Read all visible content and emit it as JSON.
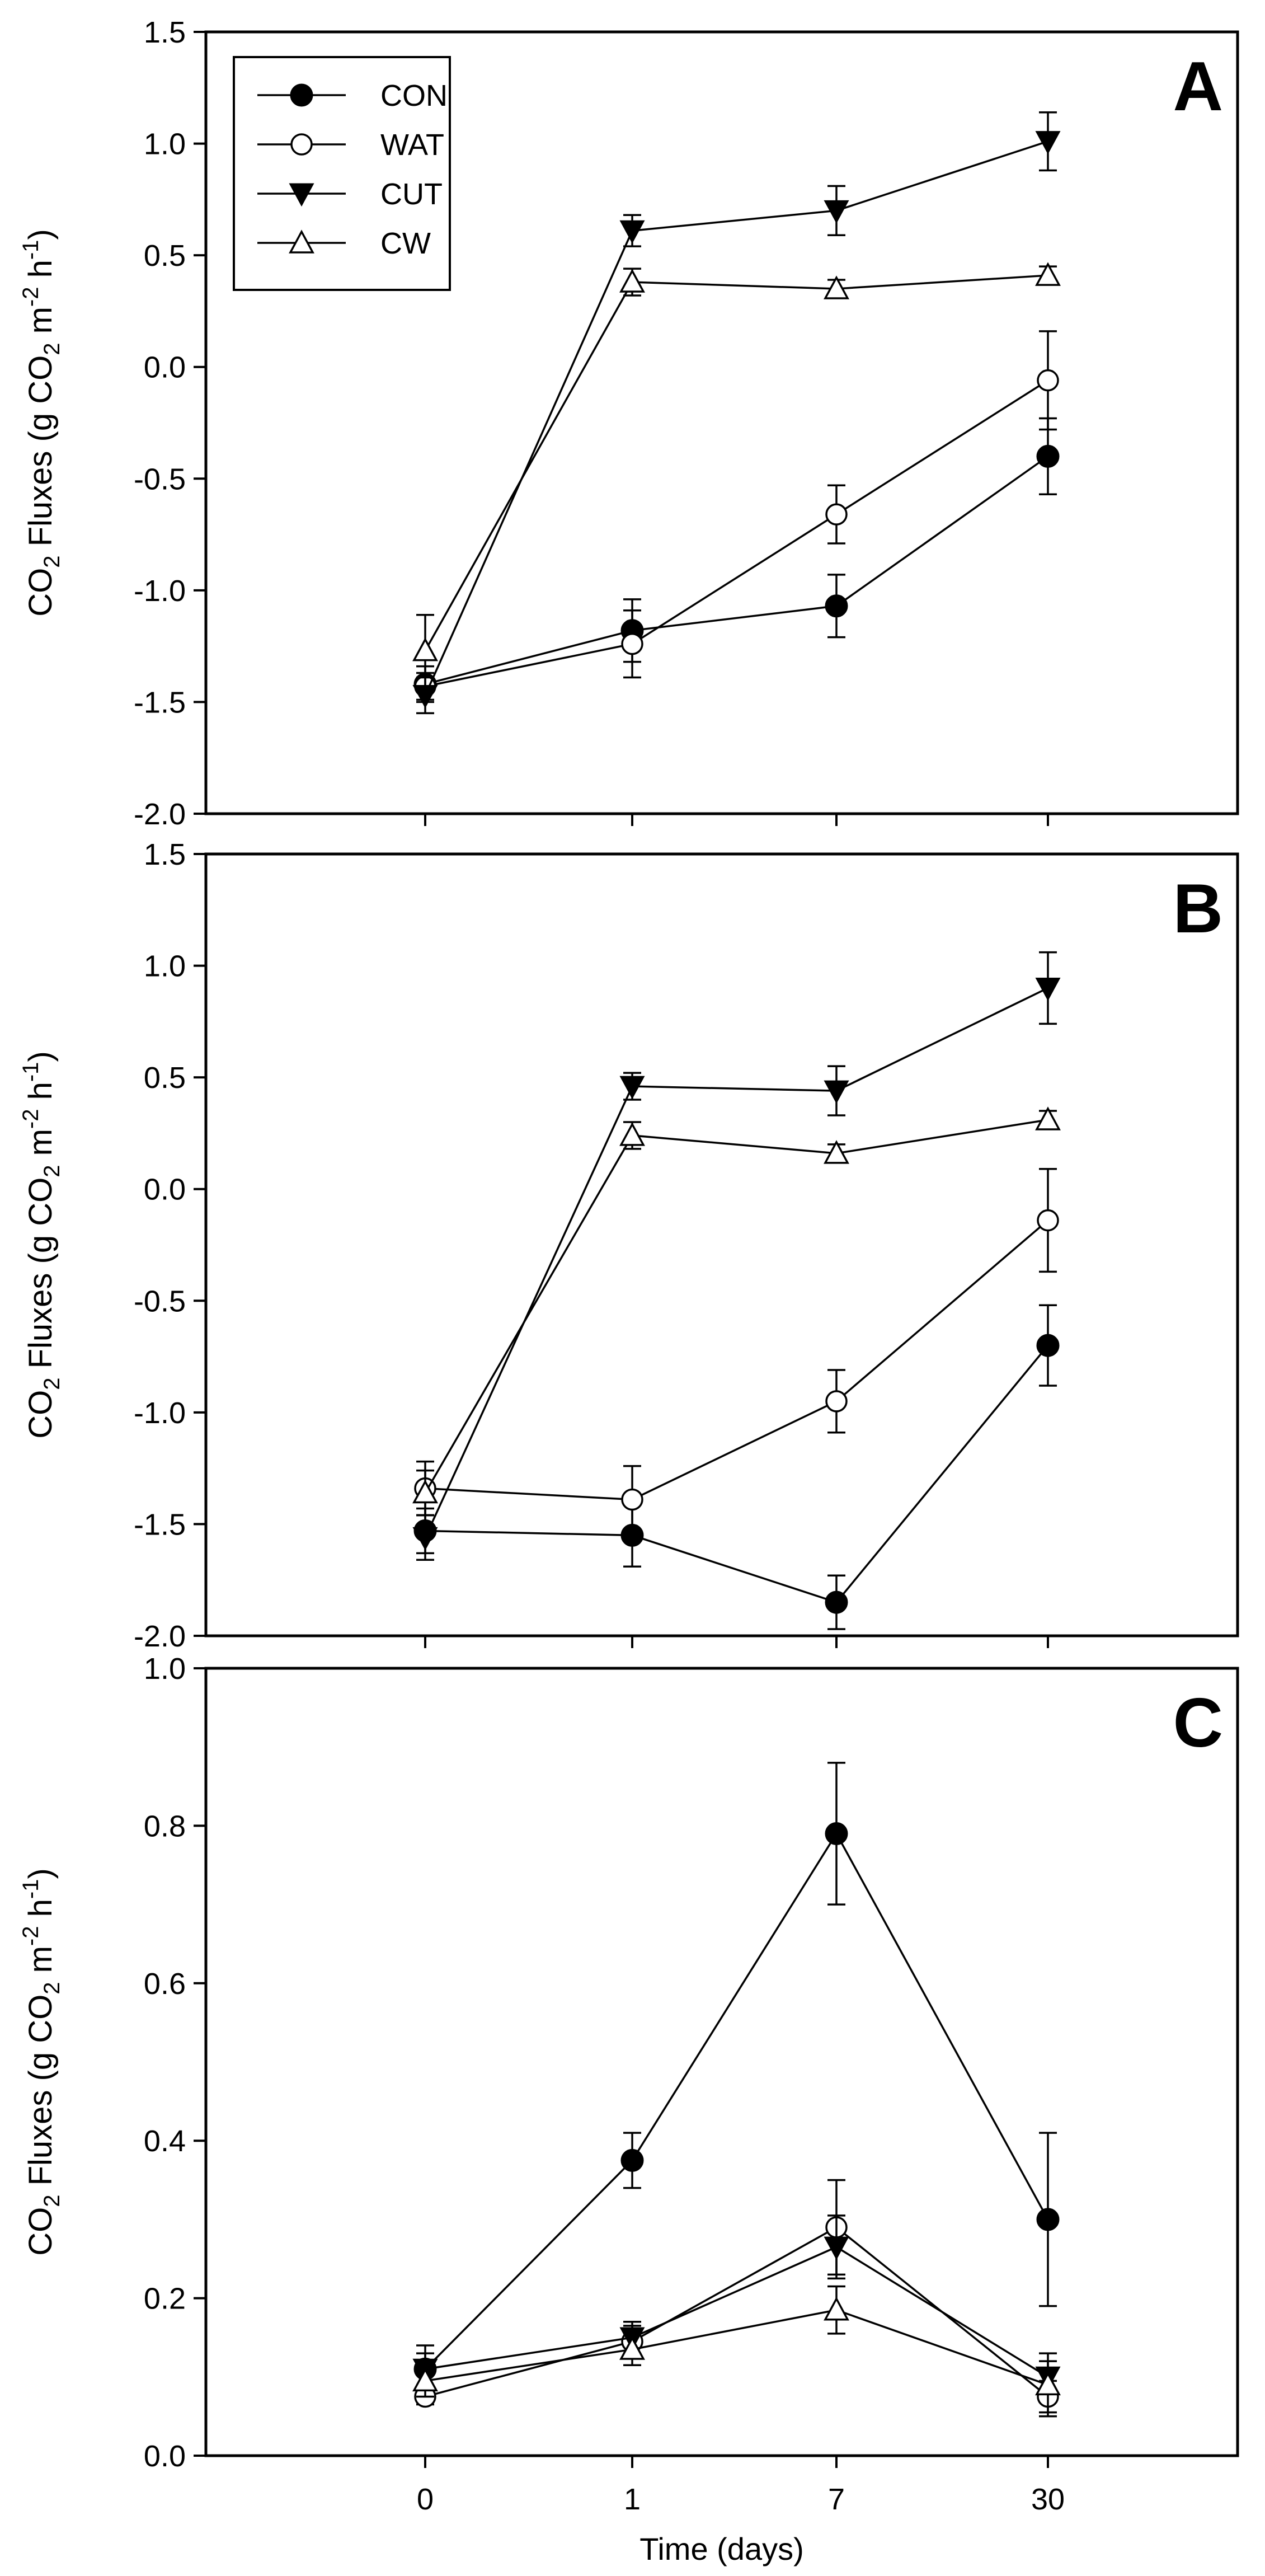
{
  "chart_data": [
    {
      "type": "line",
      "panel_label": "A",
      "ylabel": {
        "prefix": "CO",
        "sub": "2",
        "main": " Fluxes (g CO",
        "sub2": "2",
        "mid": " m",
        "sup1": "-2",
        "mid2": " h",
        "sup2": "-1",
        "end": ")"
      },
      "ylim": [
        -2.0,
        1.5
      ],
      "yticks": [
        "-2.0",
        "-1.5",
        "-1.0",
        "-0.5",
        "0.0",
        "0.5",
        "1.0",
        "1.5"
      ],
      "ytick_values": [
        -2.0,
        -1.5,
        -1.0,
        -0.5,
        0.0,
        0.5,
        1.0,
        1.5
      ],
      "categories": [
        "0",
        "1",
        "7",
        "30"
      ],
      "series": [
        {
          "name": "CON",
          "marker": "circle-filled",
          "values": [
            -1.42,
            -1.18,
            -1.07,
            -0.4
          ],
          "errors": [
            0.08,
            0.14,
            0.14,
            0.17
          ]
        },
        {
          "name": "WAT",
          "marker": "circle-open",
          "values": [
            -1.43,
            -1.24,
            -0.66,
            -0.06
          ],
          "errors": [
            0.06,
            0.15,
            0.13,
            0.22
          ]
        },
        {
          "name": "CUT",
          "marker": "triangle-down-filled",
          "values": [
            -1.47,
            0.61,
            0.7,
            1.01
          ],
          "errors": [
            0.08,
            0.07,
            0.11,
            0.13
          ]
        },
        {
          "name": "CW",
          "marker": "triangle-up-open",
          "values": [
            -1.27,
            0.38,
            0.35,
            0.41
          ],
          "errors": [
            0.16,
            0.06,
            0.04,
            0.04
          ]
        }
      ],
      "legend": {
        "position": "top-left",
        "entries": [
          "CON",
          "WAT",
          "CUT",
          "CW"
        ]
      }
    },
    {
      "type": "line",
      "panel_label": "B",
      "ylabel": {
        "prefix": "CO",
        "sub": "2",
        "main": " Fluxes (g CO",
        "sub2": "2",
        "mid": " m",
        "sup1": "-2",
        "mid2": " h",
        "sup2": "-1",
        "end": ")"
      },
      "ylim": [
        -2.0,
        1.5
      ],
      "yticks": [
        "-2.0",
        "-1.5",
        "-1.0",
        "-0.5",
        "0.0",
        "0.5",
        "1.0",
        "1.5"
      ],
      "ytick_values": [
        -2.0,
        -1.5,
        -1.0,
        -0.5,
        0.0,
        0.5,
        1.0,
        1.5
      ],
      "categories": [
        "0",
        "1",
        "7",
        "30"
      ],
      "series": [
        {
          "name": "CON",
          "marker": "circle-filled",
          "values": [
            -1.53,
            -1.55,
            -1.85,
            -0.7
          ],
          "errors": [
            0.1,
            0.14,
            0.12,
            0.18
          ]
        },
        {
          "name": "WAT",
          "marker": "circle-open",
          "values": [
            -1.34,
            -1.39,
            -0.95,
            -0.14
          ],
          "errors": [
            0.12,
            0.15,
            0.14,
            0.23
          ]
        },
        {
          "name": "CUT",
          "marker": "triangle-down-filled",
          "values": [
            -1.56,
            0.46,
            0.44,
            0.9
          ],
          "errors": [
            0.1,
            0.06,
            0.11,
            0.16
          ]
        },
        {
          "name": "CW",
          "marker": "triangle-up-open",
          "values": [
            -1.36,
            0.24,
            0.16,
            0.31
          ],
          "errors": [
            0.1,
            0.06,
            0.04,
            0.04
          ]
        }
      ]
    },
    {
      "type": "line",
      "panel_label": "C",
      "ylabel": {
        "prefix": "CO",
        "sub": "2",
        "main": " Fluxes (g CO",
        "sub2": "2",
        "mid": " m",
        "sup1": "-2",
        "mid2": " h",
        "sup2": "-1",
        "end": ")"
      },
      "ylim": [
        0.0,
        1.0
      ],
      "yticks": [
        "0.0",
        "0.2",
        "0.4",
        "0.6",
        "0.8",
        "1.0"
      ],
      "ytick_values": [
        0.0,
        0.2,
        0.4,
        0.6,
        0.8,
        1.0
      ],
      "categories": [
        "0",
        "1",
        "7",
        "30"
      ],
      "xlabel": "Time (days)",
      "series": [
        {
          "name": "CON",
          "marker": "circle-filled",
          "values": [
            0.11,
            0.375,
            0.79,
            0.3
          ],
          "errors": [
            0.03,
            0.035,
            0.09,
            0.11
          ]
        },
        {
          "name": "WAT",
          "marker": "circle-open",
          "values": [
            0.075,
            0.145,
            0.29,
            0.075
          ],
          "errors": [
            0.01,
            0.02,
            0.06,
            0.02
          ]
        },
        {
          "name": "CUT",
          "marker": "triangle-down-filled",
          "values": [
            0.11,
            0.15,
            0.265,
            0.1
          ],
          "errors": [
            0.02,
            0.02,
            0.04,
            0.02
          ]
        },
        {
          "name": "CW",
          "marker": "triangle-up-open",
          "values": [
            0.095,
            0.135,
            0.185,
            0.09
          ],
          "errors": [
            0.02,
            0.02,
            0.03,
            0.04
          ]
        }
      ]
    }
  ]
}
